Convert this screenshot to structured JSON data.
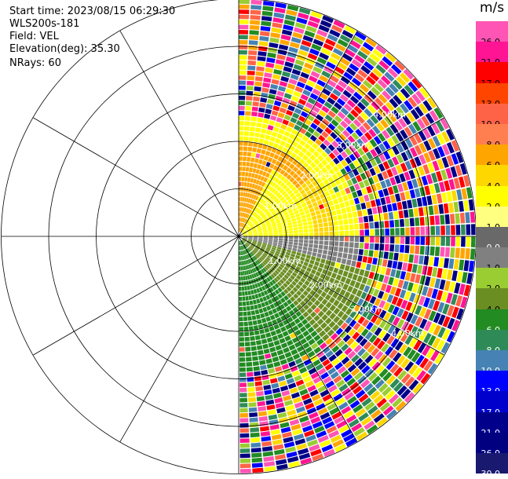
{
  "info": {
    "start_time": "Start time: 2023/08/15 06:29:30",
    "instrument": "WLS200s-181",
    "field": "Field: VEL",
    "elevation": "Elevation(deg): 35.30",
    "nrays": "NRays: 60"
  },
  "rings": [
    "1.00km",
    "2.00km",
    "3.00km",
    "4.00km"
  ],
  "colorbar": {
    "unit": "m/s",
    "levels": [
      "26.0",
      "21.0",
      "17.0",
      "13.0",
      "10.0",
      "8.0",
      "6.0",
      "4.0",
      "2.0",
      "1.0",
      "0.0",
      "-1.0",
      "-2.0",
      "-4.0",
      "-6.0",
      "-8.0",
      "-10.0",
      "-13.0",
      "-17.0",
      "-21.0",
      "-26.0",
      "-30.0"
    ],
    "colors": [
      "#ff55b4",
      "#ff1493",
      "#ff0000",
      "#ff4500",
      "#ff6347",
      "#ff7f50",
      "#ffa500",
      "#ffd700",
      "#ffff00",
      "#ffff80",
      "#696969",
      "#808080",
      "#9acd32",
      "#6b8e23",
      "#228b22",
      "#2e8b57",
      "#4682b4",
      "#0000ff",
      "#0000cd",
      "#00008b",
      "#000080",
      "#191970"
    ]
  }
}
